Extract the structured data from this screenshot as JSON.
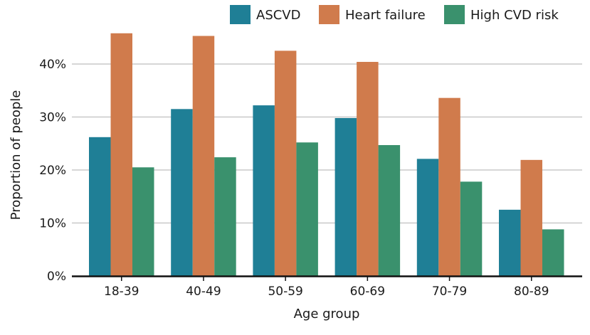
{
  "chart_data": {
    "type": "bar",
    "title": "",
    "xlabel": "Age group",
    "ylabel": "Proportion of people",
    "categories": [
      "18-39",
      "40-49",
      "50-59",
      "60-69",
      "70-79",
      "80-89"
    ],
    "series": [
      {
        "name": "ASCVD",
        "color": "#1f7f96",
        "values": [
          26.2,
          31.5,
          32.2,
          29.8,
          22.1,
          12.5
        ]
      },
      {
        "name": "Heart failure",
        "color": "#d07b4c",
        "values": [
          45.8,
          45.3,
          42.5,
          40.4,
          33.6,
          21.9
        ]
      },
      {
        "name": "High CVD risk",
        "color": "#3a916d",
        "values": [
          20.5,
          22.4,
          25.2,
          24.7,
          17.8,
          8.8
        ]
      }
    ],
    "yticks": [
      {
        "value": 0,
        "label": "0%"
      },
      {
        "value": 10,
        "label": "10%"
      },
      {
        "value": 20,
        "label": "20%"
      },
      {
        "value": 30,
        "label": "30%"
      },
      {
        "value": 40,
        "label": "40%"
      }
    ],
    "ylim": [
      0,
      48
    ],
    "grid": true,
    "legend_position": "top-right"
  }
}
